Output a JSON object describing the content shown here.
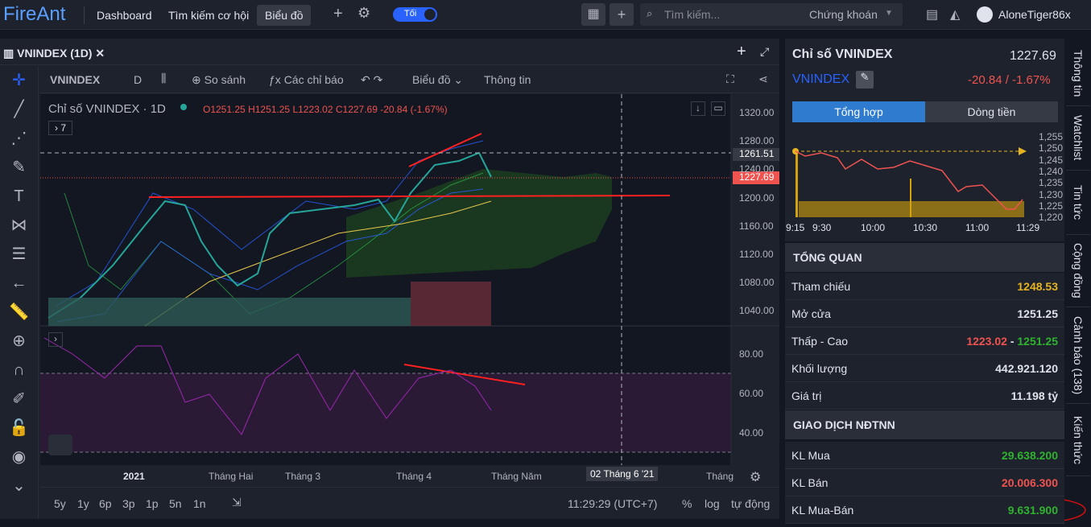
{
  "topbar": {
    "logo": "FireAnt",
    "nav": [
      "Dashboard",
      "Tìm kiếm cơ hội",
      "Biểu đồ"
    ],
    "theme": "Tối",
    "search": "Tìm kiếm...",
    "search_scope": "Chứng khoán",
    "user": "AloneTiger86x"
  },
  "chart_tab": {
    "title": "VNINDEX (1D)"
  },
  "toolbar": {
    "symbol": "VNINDEX",
    "interval": "D",
    "compare": "So sánh",
    "indicators": "Các chỉ báo",
    "chart": "Biểu đồ",
    "info": "Thông tin"
  },
  "legend": {
    "title": "Chỉ số VNINDEX · 1D",
    "open": "O1251.25",
    "high": "H1251.25",
    "low": "L1223.02",
    "close": "C1227.69",
    "change": "-20.84 (-1.67%)",
    "collapsed": "7"
  },
  "price_axis": [
    "1320.00",
    "1280.00",
    "1240.00",
    "1200.00",
    "1160.00",
    "1120.00",
    "1080.00",
    "1040.00"
  ],
  "price_marks": [
    "1261.51",
    "1227.69"
  ],
  "rsi_axis": [
    "80.00",
    "60.00",
    "40.00"
  ],
  "time_axis": [
    "2021",
    "Tháng Hai",
    "Tháng 3",
    "Tháng 4",
    "Tháng Năm",
    "02 Tháng 6 '21",
    "Tháng"
  ],
  "bottom": {
    "ranges": [
      "5y",
      "1y",
      "6p",
      "3p",
      "1p",
      "5n",
      "1n"
    ],
    "clock": "11:29:29 (UTC+7)",
    "percent": "%",
    "log": "log",
    "auto": "tự động"
  },
  "summary": {
    "name": "Chỉ số VNINDEX",
    "price": "1227.69",
    "symbol": "VNINDEX",
    "change": "-20.84 / -1.67%",
    "tabs": [
      "Tổng hợp",
      "Dòng tiền"
    ],
    "mini_y": [
      "1,255",
      "1,250",
      "1,245",
      "1,240",
      "1,235",
      "1,230",
      "1,225",
      "1,220"
    ],
    "mini_x": [
      "9:15",
      "9:30",
      "10:00",
      "10:30",
      "11:00",
      "11:29"
    ]
  },
  "overview": {
    "title": "TỔNG QUAN",
    "rows": [
      [
        "Tham chiếu",
        "1248.53"
      ],
      [
        "Mở cửa",
        "1251.25"
      ],
      [
        "Thấp - Cao",
        "1223.02",
        "-",
        "1251.25"
      ],
      [
        "Khối lượng",
        "442.921.120"
      ],
      [
        "Giá trị",
        "11.198 tỷ"
      ]
    ]
  },
  "foreign": {
    "title": "GIAO DỊCH NĐTNN",
    "rows": [
      [
        "KL Mua",
        "29.638.200"
      ],
      [
        "KL Bán",
        "20.006.300"
      ],
      [
        "KL Mua-Bán",
        "9.631.900"
      ]
    ]
  },
  "side_tabs": [
    "Thông tin",
    "Watchlist",
    "Tin tức",
    "Cộng đồng",
    "Cảnh báo (138)",
    "Kiến thức"
  ]
}
